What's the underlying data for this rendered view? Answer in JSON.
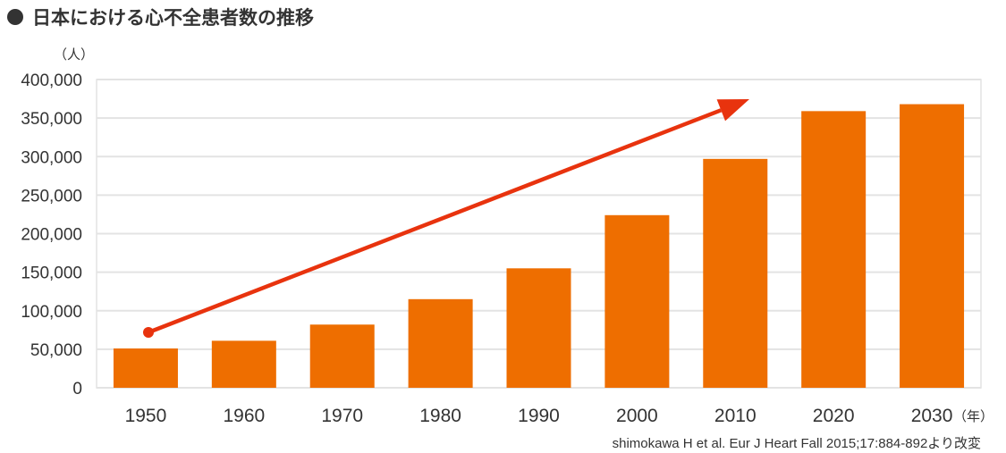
{
  "title": "日本における心不全患者数の推移",
  "source": "shimokawa H et al. Eur J Heart Fall 2015;17:884-892より改変",
  "chart_data": {
    "type": "bar",
    "title": "日本における心不全患者数の推移",
    "ylabel": "（人）",
    "xlabel": "（年）",
    "categories": [
      "1950",
      "1960",
      "1970",
      "1980",
      "1990",
      "2000",
      "2010",
      "2020",
      "2030"
    ],
    "values": [
      51000,
      61000,
      82000,
      115000,
      155000,
      224000,
      297000,
      359000,
      368000
    ],
    "ylim": [
      0,
      400000
    ],
    "yticks": [
      0,
      50000,
      100000,
      150000,
      200000,
      250000,
      300000,
      350000,
      400000
    ],
    "ytick_labels": [
      "0",
      "50,000",
      "100,000",
      "150,000",
      "200,000",
      "250,000",
      "300,000",
      "350,000",
      "400,000"
    ],
    "grid": true,
    "annotation": "upward trend arrow",
    "colors": {
      "bar": "#ee6e00",
      "arrow": "#e8330e",
      "grid": "#e3e3e3"
    }
  }
}
